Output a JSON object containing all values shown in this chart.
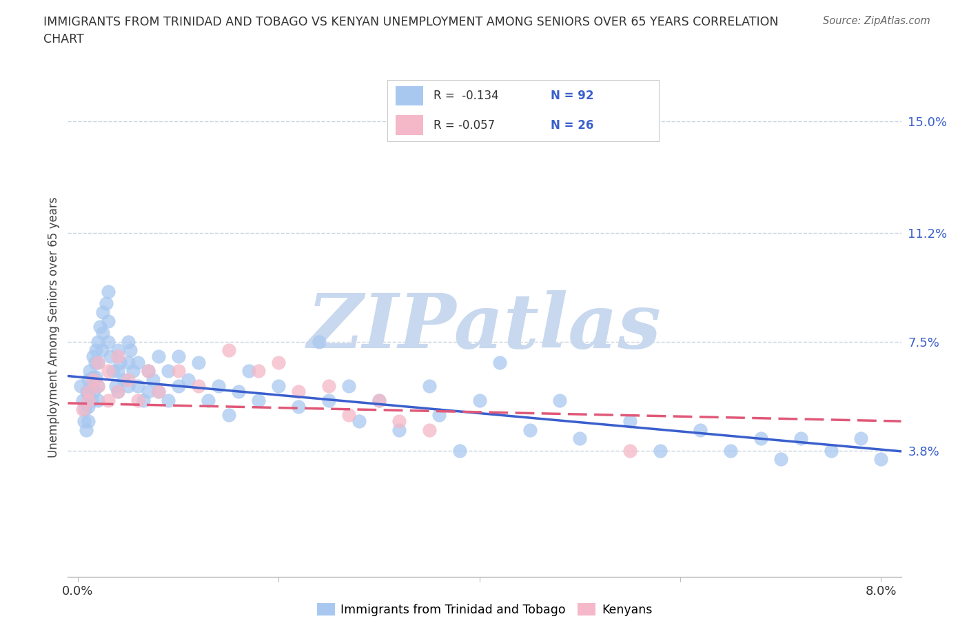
{
  "title": "IMMIGRANTS FROM TRINIDAD AND TOBAGO VS KENYAN UNEMPLOYMENT AMONG SENIORS OVER 65 YEARS CORRELATION\nCHART",
  "source": "Source: ZipAtlas.com",
  "ylabel": "Unemployment Among Seniors over 65 years",
  "xlim": [
    -0.001,
    0.082
  ],
  "ylim": [
    -0.005,
    0.165
  ],
  "xticks": [
    0.0,
    0.02,
    0.04,
    0.06,
    0.08
  ],
  "xticklabels": [
    "0.0%",
    "",
    "",
    "",
    "8.0%"
  ],
  "ytick_positions": [
    0.038,
    0.075,
    0.112,
    0.15
  ],
  "ytick_labels": [
    "3.8%",
    "7.5%",
    "11.2%",
    "15.0%"
  ],
  "hlines": [
    0.038,
    0.075,
    0.112,
    0.15
  ],
  "blue_color": "#a8c8f0",
  "pink_color": "#f4b8c8",
  "blue_line_color": "#3a5fcd",
  "pink_line_color": "#e05878",
  "legend_label1": "Immigrants from Trinidad and Tobago",
  "legend_label2": "Kenyans",
  "blue_trend_start": 0.063,
  "blue_trend_end": 0.038,
  "pink_trend_start": 0.054,
  "pink_trend_end": 0.048,
  "watermark": "ZIPatlas",
  "watermark_color": "#c8d8ee",
  "background_color": "#ffffff",
  "grid_color": "#c8d4e0",
  "blue_x": [
    0.0003,
    0.0005,
    0.0006,
    0.0007,
    0.0008,
    0.0009,
    0.001,
    0.001,
    0.001,
    0.001,
    0.0012,
    0.0013,
    0.0014,
    0.0015,
    0.0015,
    0.0016,
    0.0017,
    0.0018,
    0.0018,
    0.002,
    0.002,
    0.002,
    0.002,
    0.0022,
    0.0024,
    0.0025,
    0.0025,
    0.0028,
    0.003,
    0.003,
    0.003,
    0.0032,
    0.0035,
    0.0038,
    0.004,
    0.004,
    0.004,
    0.0042,
    0.0045,
    0.005,
    0.005,
    0.005,
    0.0052,
    0.0055,
    0.006,
    0.006,
    0.0065,
    0.007,
    0.007,
    0.0075,
    0.008,
    0.008,
    0.009,
    0.009,
    0.01,
    0.01,
    0.011,
    0.012,
    0.013,
    0.014,
    0.015,
    0.016,
    0.017,
    0.018,
    0.02,
    0.022,
    0.024,
    0.025,
    0.027,
    0.028,
    0.03,
    0.032,
    0.035,
    0.036,
    0.038,
    0.04,
    0.042,
    0.045,
    0.048,
    0.05,
    0.055,
    0.058,
    0.062,
    0.065,
    0.068,
    0.07,
    0.072,
    0.075,
    0.078,
    0.08
  ],
  "blue_y": [
    0.06,
    0.055,
    0.048,
    0.052,
    0.045,
    0.058,
    0.062,
    0.057,
    0.053,
    0.048,
    0.065,
    0.06,
    0.055,
    0.07,
    0.063,
    0.058,
    0.068,
    0.072,
    0.063,
    0.075,
    0.068,
    0.06,
    0.055,
    0.08,
    0.072,
    0.085,
    0.078,
    0.088,
    0.092,
    0.082,
    0.075,
    0.07,
    0.065,
    0.06,
    0.072,
    0.065,
    0.058,
    0.068,
    0.062,
    0.075,
    0.068,
    0.06,
    0.072,
    0.065,
    0.068,
    0.06,
    0.055,
    0.065,
    0.058,
    0.062,
    0.07,
    0.058,
    0.065,
    0.055,
    0.07,
    0.06,
    0.062,
    0.068,
    0.055,
    0.06,
    0.05,
    0.058,
    0.065,
    0.055,
    0.06,
    0.053,
    0.075,
    0.055,
    0.06,
    0.048,
    0.055,
    0.045,
    0.06,
    0.05,
    0.038,
    0.055,
    0.068,
    0.045,
    0.055,
    0.042,
    0.048,
    0.038,
    0.045,
    0.038,
    0.042,
    0.035,
    0.042,
    0.038,
    0.042,
    0.035
  ],
  "pink_x": [
    0.0005,
    0.001,
    0.001,
    0.0015,
    0.002,
    0.002,
    0.003,
    0.003,
    0.004,
    0.004,
    0.005,
    0.006,
    0.007,
    0.008,
    0.01,
    0.012,
    0.015,
    0.018,
    0.02,
    0.022,
    0.025,
    0.027,
    0.03,
    0.032,
    0.035,
    0.055
  ],
  "pink_y": [
    0.052,
    0.058,
    0.055,
    0.062,
    0.068,
    0.06,
    0.065,
    0.055,
    0.07,
    0.058,
    0.062,
    0.055,
    0.065,
    0.058,
    0.065,
    0.06,
    0.072,
    0.065,
    0.068,
    0.058,
    0.06,
    0.05,
    0.055,
    0.048,
    0.045,
    0.038
  ]
}
